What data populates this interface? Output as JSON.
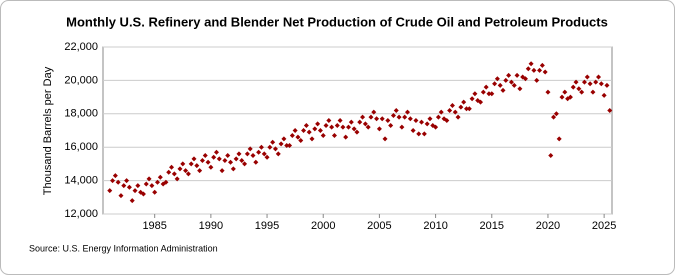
{
  "chart_data": {
    "type": "scatter",
    "title": "Monthly U.S. Refinery and Blender Net Production of Crude Oil and Petroleum Products",
    "y_label": "Thousand Barrels per Day",
    "source": "Source: U.S. Energy Information Administration",
    "color": "#990000",
    "grid": true,
    "xlim": [
      1980.4,
      2025.7
    ],
    "ylim": [
      12000,
      22000
    ],
    "xticks": [
      1985,
      1990,
      1995,
      2000,
      2005,
      2010,
      2015,
      2020,
      2025
    ],
    "yticks": [
      {
        "value": 12000,
        "label": "12,000"
      },
      {
        "value": 14000,
        "label": "14,000"
      },
      {
        "value": 16000,
        "label": "16,000"
      },
      {
        "value": 18000,
        "label": "18,000"
      },
      {
        "value": 20000,
        "label": "20,000"
      },
      {
        "value": 22000,
        "label": "22,000"
      }
    ],
    "x": [
      1981,
      1981.25,
      1981.5,
      1981.75,
      1982,
      1982.25,
      1982.5,
      1982.75,
      1983,
      1983.25,
      1983.5,
      1983.75,
      1984,
      1984.25,
      1984.5,
      1984.75,
      1985,
      1985.25,
      1985.5,
      1985.75,
      1986,
      1986.25,
      1986.5,
      1986.75,
      1987,
      1987.25,
      1987.5,
      1987.75,
      1988,
      1988.25,
      1988.5,
      1988.75,
      1989,
      1989.25,
      1989.5,
      1989.75,
      1990,
      1990.25,
      1990.5,
      1990.75,
      1991,
      1991.25,
      1991.5,
      1991.75,
      1992,
      1992.25,
      1992.5,
      1992.75,
      1993,
      1993.25,
      1993.5,
      1993.75,
      1994,
      1994.25,
      1994.5,
      1994.75,
      1995,
      1995.25,
      1995.5,
      1995.75,
      1996,
      1996.25,
      1996.5,
      1996.75,
      1997,
      1997.25,
      1997.5,
      1997.75,
      1998,
      1998.25,
      1998.5,
      1998.75,
      1999,
      1999.25,
      1999.5,
      1999.75,
      2000,
      2000.25,
      2000.5,
      2000.75,
      2001,
      2001.25,
      2001.5,
      2001.75,
      2002,
      2002.25,
      2002.5,
      2002.75,
      2003,
      2003.25,
      2003.5,
      2003.75,
      2004,
      2004.25,
      2004.5,
      2004.75,
      2005,
      2005.25,
      2005.5,
      2005.75,
      2006,
      2006.25,
      2006.5,
      2006.75,
      2007,
      2007.25,
      2007.5,
      2007.75,
      2008,
      2008.25,
      2008.5,
      2008.75,
      2009,
      2009.25,
      2009.5,
      2009.75,
      2010,
      2010.25,
      2010.5,
      2010.75,
      2011,
      2011.25,
      2011.5,
      2011.75,
      2012,
      2012.25,
      2012.5,
      2012.75,
      2013,
      2013.25,
      2013.5,
      2013.75,
      2014,
      2014.25,
      2014.5,
      2014.75,
      2015,
      2015.25,
      2015.5,
      2015.75,
      2016,
      2016.25,
      2016.5,
      2016.75,
      2017,
      2017.25,
      2017.5,
      2017.75,
      2018,
      2018.25,
      2018.5,
      2018.75,
      2019,
      2019.25,
      2019.5,
      2019.75,
      2020,
      2020.25,
      2020.5,
      2020.75,
      2021,
      2021.25,
      2021.5,
      2021.75,
      2022,
      2022.25,
      2022.5,
      2022.75,
      2023,
      2023.25,
      2023.5,
      2023.75,
      2024,
      2024.25,
      2024.5,
      2024.75,
      2025,
      2025.25,
      2025.5
    ],
    "values": [
      13400,
      14000,
      14300,
      13900,
      13100,
      13700,
      14000,
      13600,
      12800,
      13400,
      13700,
      13300,
      13200,
      13800,
      14100,
      13700,
      13300,
      13900,
      14200,
      13800,
      13900,
      14500,
      14800,
      14400,
      14100,
      14700,
      15000,
      14600,
      14400,
      15000,
      15300,
      14900,
      14600,
      15200,
      15500,
      15100,
      14800,
      15400,
      15700,
      15300,
      14600,
      15200,
      15500,
      15100,
      14700,
      15300,
      15600,
      15200,
      15000,
      15600,
      15900,
      15500,
      15100,
      15700,
      16000,
      15600,
      15400,
      16000,
      16300,
      15900,
      15600,
      16200,
      16500,
      16100,
      16100,
      16700,
      17000,
      16600,
      16400,
      17000,
      17300,
      16900,
      16500,
      17100,
      17400,
      17000,
      16700,
      17300,
      17600,
      17200,
      16700,
      17300,
      17600,
      17200,
      16600,
      17200,
      17500,
      17100,
      16900,
      17500,
      17800,
      17400,
      17200,
      17800,
      18100,
      17700,
      17100,
      17700,
      16500,
      17600,
      17300,
      17900,
      18200,
      17800,
      17200,
      17800,
      18100,
      17700,
      17000,
      17600,
      16800,
      17500,
      16800,
      17400,
      17700,
      17300,
      17200,
      17800,
      18100,
      17700,
      17600,
      18200,
      18500,
      18100,
      17800,
      18400,
      18700,
      18300,
      18300,
      18900,
      19200,
      18800,
      18700,
      19300,
      19600,
      19200,
      19200,
      19800,
      20100,
      19700,
      19400,
      20000,
      20300,
      19900,
      19700,
      20300,
      19500,
      20200,
      20100,
      20700,
      21000,
      20600,
      20000,
      20600,
      20900,
      20500,
      19300,
      15500,
      17800,
      18000,
      16500,
      19000,
      19300,
      18900,
      19000,
      19600,
      19900,
      19500,
      19300,
      19900,
      20200,
      19800,
      19300,
      19900,
      20200,
      19800,
      19100,
      19700,
      18200
    ]
  }
}
